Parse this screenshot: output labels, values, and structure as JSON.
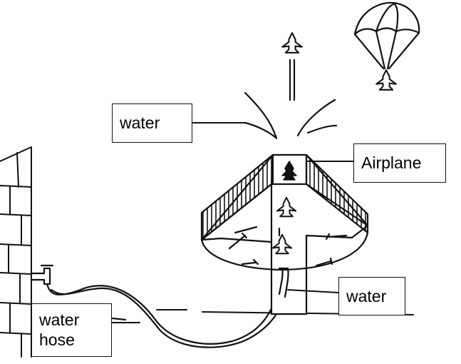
{
  "labels": {
    "water_top": "water",
    "airplane": "Airplane",
    "water_right": "water",
    "hose_line1": "water",
    "hose_line2": "hose"
  },
  "colors": {
    "ink": "#111111",
    "background": "#ffffff"
  }
}
